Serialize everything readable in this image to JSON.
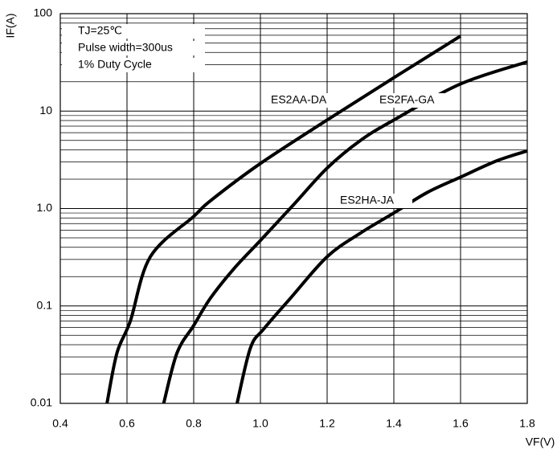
{
  "chart_data": {
    "type": "line",
    "x_label": "VF(V)",
    "y_label": "IF(A)",
    "annotations": [
      "TJ=25℃",
      "Pulse width=300us",
      "1% Duty Cycle"
    ],
    "xlim": [
      0.4,
      1.8
    ],
    "xticks": [
      0.4,
      0.6,
      0.8,
      {
        "value": 1,
        "label": "1.0"
      },
      1.2,
      1.4,
      1.6,
      1.8
    ],
    "ylim": [
      0.01,
      100
    ],
    "yticks": [
      0.01,
      0.1,
      {
        "value": 1,
        "label": "1.0"
      },
      10,
      100
    ],
    "log_y": true,
    "grid": true,
    "series": [
      {
        "name": "ES2AA-DA",
        "color": "#000000",
        "x": [
          0.54,
          0.57,
          0.61,
          0.67,
          0.8,
          0.85,
          1.0,
          1.2,
          1.4,
          1.6
        ],
        "values": [
          0.01,
          0.033,
          0.07,
          0.32,
          0.83,
          1.2,
          2.9,
          8.1,
          22,
          59
        ]
      },
      {
        "name": "ES2FA-GA",
        "color": "#000000",
        "x": [
          0.71,
          0.75,
          0.8,
          0.85,
          0.92,
          1.0,
          1.1,
          1.2,
          1.3,
          1.4,
          1.6,
          1.8
        ],
        "values": [
          0.01,
          0.033,
          0.063,
          0.12,
          0.24,
          0.47,
          1.1,
          2.6,
          5,
          8.1,
          19,
          32
        ]
      },
      {
        "name": "ES2HA-JA",
        "color": "#000000",
        "x": [
          0.93,
          0.97,
          1.01,
          1.09,
          1.2,
          1.3,
          1.4,
          1.5,
          1.6,
          1.71,
          1.8
        ],
        "values": [
          0.01,
          0.037,
          0.058,
          0.12,
          0.32,
          0.56,
          0.9,
          1.46,
          2.1,
          3.1,
          3.9
        ]
      }
    ]
  }
}
